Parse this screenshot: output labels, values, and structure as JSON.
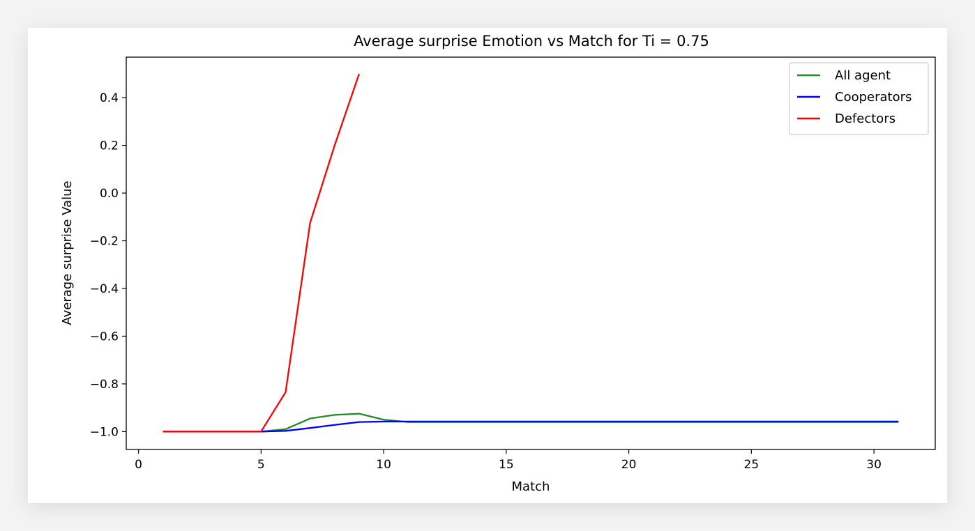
{
  "chart_data": {
    "type": "line",
    "title": "Average surprise Emotion vs Match for Ti = 0.75",
    "xlabel": "Match",
    "ylabel": "Average surprise Value",
    "xlim": [
      -0.5,
      32.5
    ],
    "ylim": [
      -1.075,
      0.57
    ],
    "xticks": [
      0,
      5,
      10,
      15,
      20,
      25,
      30
    ],
    "yticks": [
      -1.0,
      -0.8,
      -0.6,
      -0.4,
      -0.2,
      0.0,
      0.2,
      0.4
    ],
    "xtick_labels": [
      "0",
      "5",
      "10",
      "15",
      "20",
      "25",
      "30"
    ],
    "ytick_labels": [
      "−1.0",
      "−0.8",
      "−0.6",
      "−0.4",
      "−0.2",
      "0.0",
      "0.2",
      "0.4"
    ],
    "grid": false,
    "legend_position": "top-right",
    "series": [
      {
        "name": "All agent",
        "color": "#228b22",
        "x": [
          1,
          2,
          3,
          4,
          5,
          6,
          7,
          8,
          9,
          10,
          11,
          12,
          13,
          14,
          15,
          16,
          17,
          18,
          19,
          20,
          21,
          22,
          23,
          24,
          25,
          26,
          27,
          28,
          29,
          30,
          31
        ],
        "y": [
          -1.0,
          -1.0,
          -1.0,
          -1.0,
          -1.0,
          -0.99,
          -0.945,
          -0.93,
          -0.925,
          -0.95,
          -0.96,
          -0.96,
          -0.96,
          -0.96,
          -0.96,
          -0.96,
          -0.96,
          -0.96,
          -0.96,
          -0.96,
          -0.96,
          -0.96,
          -0.96,
          -0.96,
          -0.96,
          -0.96,
          -0.96,
          -0.96,
          -0.96,
          -0.96,
          -0.96
        ]
      },
      {
        "name": "Cooperators",
        "color": "#0000ff",
        "x": [
          1,
          2,
          3,
          4,
          5,
          6,
          7,
          8,
          9,
          10,
          11,
          12,
          13,
          14,
          15,
          16,
          17,
          18,
          19,
          20,
          21,
          22,
          23,
          24,
          25,
          26,
          27,
          28,
          29,
          30,
          31
        ],
        "y": [
          -1.0,
          -1.0,
          -1.0,
          -1.0,
          -1.0,
          -0.997,
          -0.985,
          -0.972,
          -0.96,
          -0.958,
          -0.958,
          -0.958,
          -0.958,
          -0.958,
          -0.958,
          -0.958,
          -0.958,
          -0.958,
          -0.958,
          -0.958,
          -0.958,
          -0.958,
          -0.958,
          -0.958,
          -0.958,
          -0.958,
          -0.958,
          -0.958,
          -0.958,
          -0.958,
          -0.958
        ]
      },
      {
        "name": "Defectors",
        "color": "#ff0000",
        "x": [
          1,
          2,
          3,
          4,
          5,
          6,
          7,
          8,
          9
        ],
        "y": [
          -1.0,
          -1.0,
          -1.0,
          -1.0,
          -1.0,
          -0.835,
          -0.125,
          0.2,
          0.5
        ]
      }
    ]
  }
}
